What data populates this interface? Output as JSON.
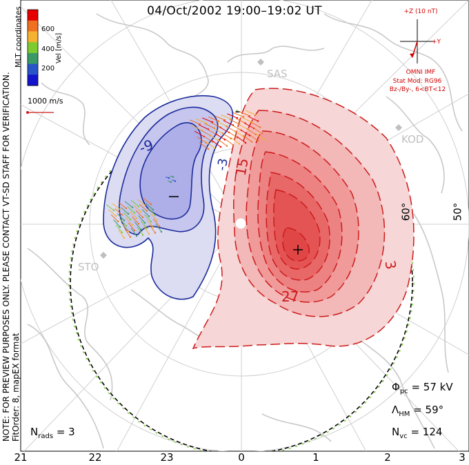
{
  "title": "04/Oct/2002 19:00–19:02 UT",
  "mlt_ticks": [
    "21",
    "22",
    "23",
    "0",
    "1",
    "2",
    "3"
  ],
  "latitude_labels": [
    "60°",
    "50°"
  ],
  "colorbar": {
    "ticks": [
      "600",
      "400",
      "200"
    ],
    "unit_label": "Vel [m/s]",
    "colors": [
      "#e60000",
      "#f07020",
      "#f5b230",
      "#7ecb30",
      "#3a9a66",
      "#2a55c8",
      "#1414cc"
    ],
    "range_m_s": [
      0,
      700
    ]
  },
  "coord_label": "MLT coordinates",
  "velocity_ref": "1000 m/s",
  "note_lines": [
    "NOTE: FOR PREVIEW PURPOSES ONLY. PLEASE CONTACT VT-SD STAFF FOR VERIFICATION.",
    "FitOrder: 8,  mapEX format"
  ],
  "imf": {
    "axis_z": "+Z (10 nT)",
    "axis_y": "+Y",
    "source": "OMNI IMF",
    "model_line1": "Stat Mod: RG96",
    "model_line2": "Bz-/By-, 6<BT<12"
  },
  "stats": {
    "phi_pc_symbol": "Φ",
    "phi_pc_sub": "pc",
    "phi_pc_value": "= 57 kV",
    "lambda_symbol": "Λ",
    "lambda_sub": "HM",
    "lambda_value": "= 59°",
    "nvc_symbol": "N",
    "nvc_sub": "vc",
    "nvc_value": "= 124",
    "nrads_symbol": "N",
    "nrads_sub": "rads",
    "nrads_value": "= 3"
  },
  "radars": [
    "SAS",
    "KOD",
    "STO"
  ],
  "contour_labels": [
    "-9",
    "-3",
    "15",
    "27",
    "3"
  ],
  "colors": {
    "positive_contour": "#cc1a1a",
    "negative_contour": "#1a2a9a",
    "positive_fill": "#e84040",
    "negative_fill": "#5a5ad8",
    "hmb": "#8ad04a",
    "continent": "#c8c8c8"
  }
}
